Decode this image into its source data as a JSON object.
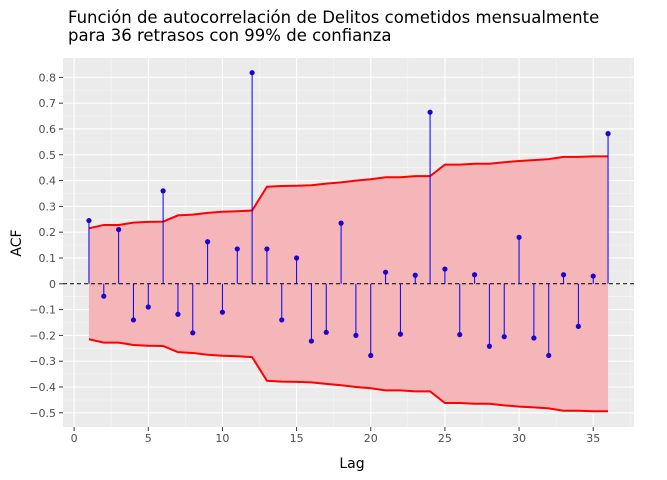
{
  "chart_data": {
    "type": "stem",
    "title_lines": [
      "Función de autocorrelación de Delitos cometidos mensualmente",
      "para 36 retrasos con 99% de confianza"
    ],
    "xlabel": "Lag",
    "ylabel": "ACF",
    "xlim": [
      -0.75,
      37.75
    ],
    "ylim": [
      -0.555,
      0.875
    ],
    "x_ticks": [
      0,
      5,
      10,
      15,
      20,
      25,
      30,
      35
    ],
    "x_tick_labels": [
      "0",
      "5",
      "10",
      "15",
      "20",
      "25",
      "30",
      "35"
    ],
    "y_ticks": [
      -0.5,
      -0.4,
      -0.3,
      -0.2,
      -0.1,
      0,
      0.1,
      0.2,
      0.3,
      0.4,
      0.5,
      0.6,
      0.7,
      0.8
    ],
    "y_tick_labels": [
      "−0.5",
      "−0.4",
      "−0.3",
      "−0.2",
      "−0.1",
      "0",
      "0.1",
      "0.2",
      "0.3",
      "0.4",
      "0.5",
      "0.6",
      "0.7",
      "0.8"
    ],
    "grid": true,
    "lags": [
      1,
      2,
      3,
      4,
      5,
      6,
      7,
      8,
      9,
      10,
      11,
      12,
      13,
      14,
      15,
      16,
      17,
      18,
      19,
      20,
      21,
      22,
      23,
      24,
      25,
      26,
      27,
      28,
      29,
      30,
      31,
      32,
      33,
      34,
      35,
      36
    ],
    "acf": [
      0.245,
      -0.048,
      0.21,
      -0.14,
      -0.09,
      0.36,
      -0.118,
      -0.19,
      0.163,
      -0.11,
      0.135,
      0.818,
      0.135,
      -0.14,
      0.1,
      -0.222,
      -0.188,
      0.235,
      -0.2,
      -0.278,
      0.045,
      -0.195,
      0.033,
      0.665,
      0.057,
      -0.197,
      0.035,
      -0.242,
      -0.205,
      0.18,
      -0.21,
      -0.278,
      0.035,
      -0.165,
      0.03,
      0.582
    ],
    "confidence_upper": [
      0.215,
      0.228,
      0.228,
      0.237,
      0.24,
      0.241,
      0.265,
      0.268,
      0.275,
      0.279,
      0.281,
      0.284,
      0.376,
      0.379,
      0.38,
      0.382,
      0.388,
      0.393,
      0.4,
      0.405,
      0.413,
      0.413,
      0.417,
      0.417,
      0.462,
      0.462,
      0.465,
      0.465,
      0.471,
      0.476,
      0.479,
      0.483,
      0.492,
      0.492,
      0.494,
      0.494
    ],
    "colors": {
      "background": "#ffffff",
      "panel": "#ebebeb",
      "grid_major": "#ffffff",
      "grid_minor": "#f5f5f5",
      "band_fill": "#f4b6b9",
      "band_line": "#ff0000",
      "stem": "#0000ff",
      "point": "#1f00cc",
      "zero_line": "#000000",
      "tick_text": "#4d4d4d",
      "tick_mark": "#333333"
    }
  }
}
